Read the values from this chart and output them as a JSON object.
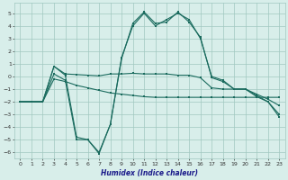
{
  "xlabel": "Humidex (Indice chaleur)",
  "x": [
    0,
    1,
    2,
    3,
    4,
    5,
    6,
    7,
    8,
    9,
    10,
    11,
    12,
    13,
    14,
    15,
    16,
    17,
    18,
    19,
    20,
    21,
    22,
    23
  ],
  "line1": [
    -2,
    -2,
    -2,
    0.2,
    -0.3,
    -5,
    -5,
    -6,
    -3.8,
    1.5,
    4,
    5,
    4,
    4.5,
    5,
    4.5,
    3,
    0,
    -0.3,
    -1,
    -1,
    -1.5,
    -2,
    -3
  ],
  "line2": [
    -2,
    -2,
    -2,
    0.8,
    0.1,
    -4.8,
    -5,
    -6.1,
    -3.8,
    1.4,
    4.2,
    5.1,
    4.2,
    4.3,
    5.1,
    4.3,
    3.1,
    -0.1,
    -0.4,
    -1,
    -1,
    -1.6,
    -2,
    -3.2
  ],
  "line3": [
    -2,
    -2,
    -2,
    0.8,
    0.2,
    0.15,
    0.1,
    0.05,
    0.2,
    0.2,
    0.25,
    0.2,
    0.2,
    0.2,
    0.1,
    0.1,
    -0.1,
    -0.9,
    -1.0,
    -1.0,
    -1.0,
    -1.4,
    -1.8,
    -2.3
  ],
  "line4": [
    -2,
    -2,
    -2,
    -0.2,
    -0.4,
    -0.7,
    -0.9,
    -1.1,
    -1.3,
    -1.4,
    -1.5,
    -1.6,
    -1.65,
    -1.65,
    -1.65,
    -1.65,
    -1.65,
    -1.65,
    -1.65,
    -1.65,
    -1.65,
    -1.65,
    -1.65,
    -1.65
  ],
  "line_color": "#1a6b5e",
  "bg_color": "#d8eeea",
  "grid_color": "#a0c8c0",
  "ylim": [
    -6.5,
    5.8
  ],
  "xlim": [
    -0.5,
    23.5
  ],
  "yticks": [
    -6,
    -5,
    -4,
    -3,
    -2,
    -1,
    0,
    1,
    2,
    3,
    4,
    5
  ],
  "xticks": [
    0,
    1,
    2,
    3,
    4,
    5,
    6,
    7,
    8,
    9,
    10,
    11,
    12,
    13,
    14,
    15,
    16,
    17,
    18,
    19,
    20,
    21,
    22,
    23
  ]
}
